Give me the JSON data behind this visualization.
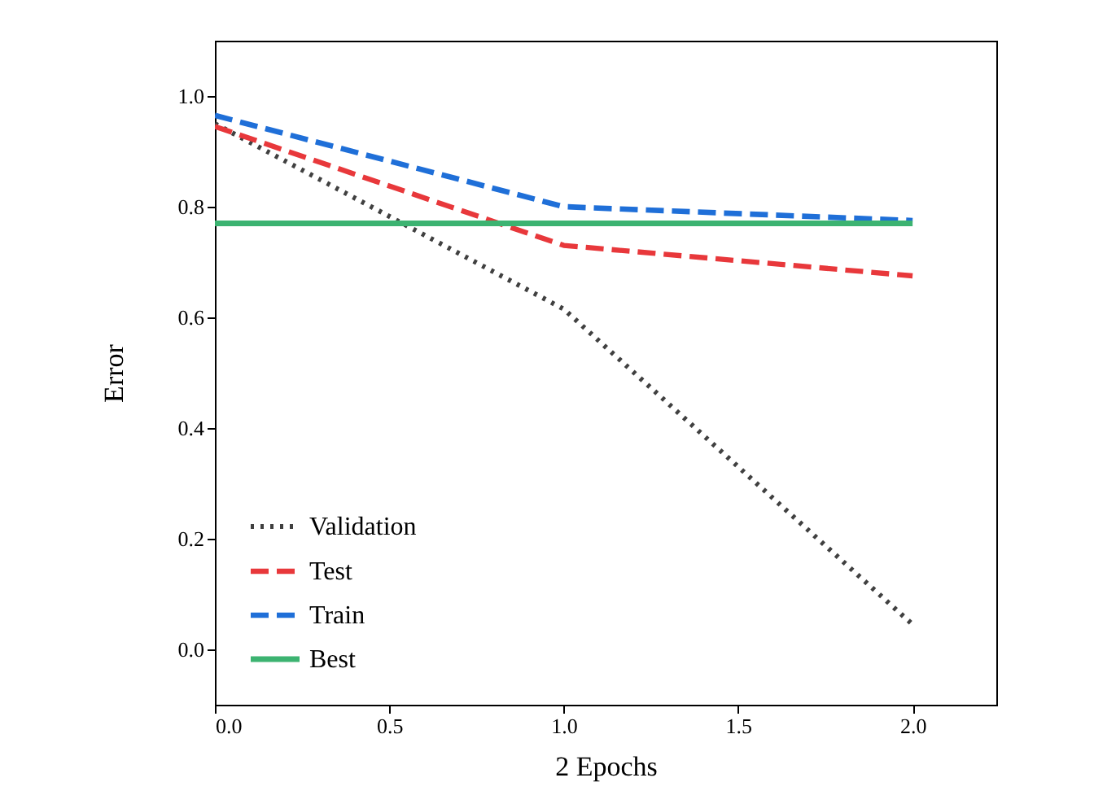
{
  "chart_data": {
    "type": "line",
    "xlabel": "2 Epochs",
    "ylabel": "Error",
    "x": [
      0,
      1,
      2
    ],
    "series": [
      {
        "name": "Validation",
        "color": "#404040",
        "line_style": "dotted",
        "values": [
          0.95,
          0.615,
          0.045
        ]
      },
      {
        "name": "Test",
        "color": "#e8383b",
        "line_style": "dashed",
        "values": [
          0.945,
          0.73,
          0.675
        ]
      },
      {
        "name": "Train",
        "color": "#1f6fd8",
        "line_style": "dashed",
        "values": [
          0.965,
          0.8,
          0.775
        ]
      },
      {
        "name": "Best",
        "color": "#3cb371",
        "line_style": "solid",
        "values": [
          0.77,
          0.77,
          0.77
        ]
      }
    ],
    "xlim": [
      0,
      2.24
    ],
    "ylim": [
      -0.1,
      1.1
    ],
    "xticks": [
      {
        "value": 0,
        "label": "0.0"
      },
      {
        "value": 0.5,
        "label": "0.5"
      },
      {
        "value": 1,
        "label": "1.0"
      },
      {
        "value": 1.5,
        "label": "1.5"
      },
      {
        "value": 2,
        "label": "2.0"
      }
    ],
    "yticks": [
      {
        "value": 0,
        "label": "0.0"
      },
      {
        "value": 0.2,
        "label": "0.2"
      },
      {
        "value": 0.4,
        "label": "0.4"
      },
      {
        "value": 0.6,
        "label": "0.6"
      },
      {
        "value": 0.8,
        "label": "0.8"
      },
      {
        "value": 1,
        "label": "1.0"
      }
    ],
    "grid": false,
    "legend": "bottom left",
    "marker": "none"
  }
}
